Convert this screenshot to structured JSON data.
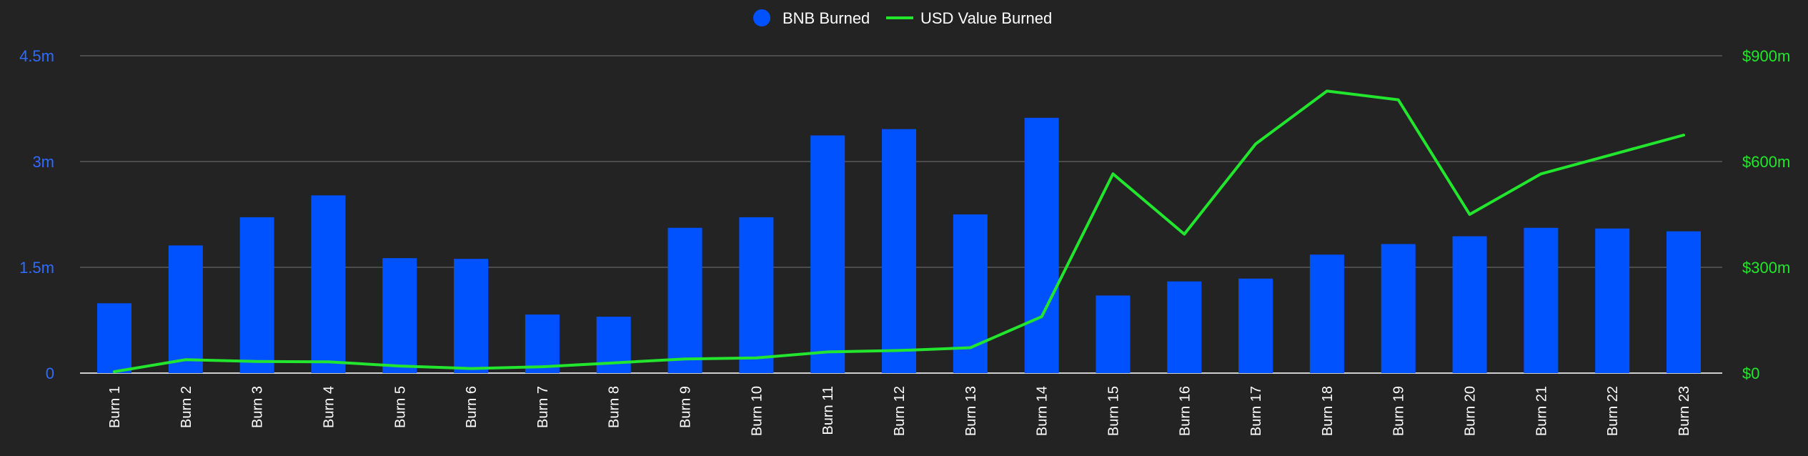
{
  "colors": {
    "background": "#232323",
    "bnb": "#0052FF",
    "usd": "#22E62E",
    "grid": "#5A5A5A",
    "axis_left_text": "#2F6BFF",
    "axis_right_text": "#22E62E",
    "text": "#FFFFFF"
  },
  "legend": {
    "bnb_label": "BNB Burned",
    "usd_label": "USD Value Burned"
  },
  "chart_data": {
    "type": "bar",
    "categories": [
      "Burn 1",
      "Burn 2",
      "Burn 3",
      "Burn 4",
      "Burn 5",
      "Burn 6",
      "Burn 7",
      "Burn 8",
      "Burn 9",
      "Burn 10",
      "Burn 11",
      "Burn 12",
      "Burn 13",
      "Burn 14",
      "Burn 15",
      "Burn 16",
      "Burn 17",
      "Burn 18",
      "Burn 19",
      "Burn 20",
      "Burn 21",
      "Burn 22",
      "Burn 23"
    ],
    "series": [
      {
        "name": "BNB Burned",
        "type": "bar",
        "axis": "left",
        "values": [
          0.99,
          1.81,
          2.21,
          2.52,
          1.63,
          1.62,
          0.83,
          0.8,
          2.06,
          2.21,
          3.37,
          3.46,
          2.25,
          3.62,
          1.1,
          1.3,
          1.34,
          1.68,
          1.83,
          1.94,
          2.06,
          2.05,
          2.01
        ]
      },
      {
        "name": "USD Value Burned",
        "type": "line",
        "axis": "right",
        "values": [
          4,
          38,
          33,
          32,
          20,
          13,
          18,
          29,
          40,
          43,
          60,
          64,
          72,
          160,
          565,
          394,
          650,
          800,
          775,
          450,
          565,
          620,
          675
        ]
      }
    ],
    "y_left": {
      "ylim": [
        0,
        4.5
      ],
      "ticks": [
        "0",
        "1.5m",
        "3m",
        "4.5m"
      ],
      "tick_values": [
        0,
        1.5,
        3,
        4.5
      ]
    },
    "y_right": {
      "ylim": [
        0,
        900
      ],
      "ticks": [
        "$0",
        "$300m",
        "$600m",
        "$900m"
      ],
      "tick_values": [
        0,
        300,
        600,
        900
      ]
    },
    "grid": true,
    "legend_position": "top-center"
  }
}
